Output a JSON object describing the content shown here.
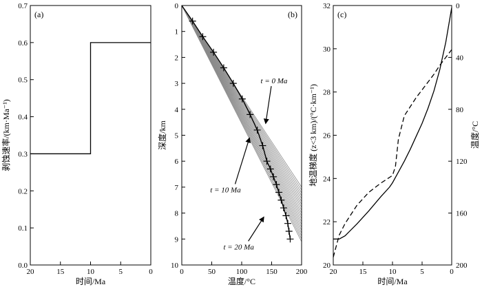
{
  "chart_data": [
    {
      "type": "line",
      "panel_label": "(a)",
      "xlabel": "时间/Ma",
      "ylabel": "剥蚀速率/(km·Ma⁻¹)",
      "xlim": [
        20,
        0
      ],
      "ylim": [
        0,
        0.7
      ],
      "x_ticks": [
        "20",
        "15",
        "10",
        "5",
        "0"
      ],
      "y_ticks": [
        "0.0",
        "0.1",
        "0.2",
        "0.3",
        "0.4",
        "0.5",
        "0.6",
        "0.7"
      ],
      "series": [
        {
          "style": "step",
          "x": [
            20,
            10,
            10,
            0
          ],
          "y": [
            0.3,
            0.3,
            0.6,
            0.6
          ]
        }
      ]
    },
    {
      "type": "line",
      "panel_label": "(b)",
      "xlabel": "温度/°C",
      "ylabel": "深度/km",
      "xlim": [
        0,
        200
      ],
      "ylim": [
        10,
        0
      ],
      "x_ticks": [
        "0",
        "50",
        "100",
        "150",
        "200"
      ],
      "y_ticks": [
        "0",
        "1",
        "2",
        "3",
        "4",
        "5",
        "6",
        "7",
        "8",
        "9",
        "10"
      ],
      "geotherm_fan": {
        "color": "#8a8a8a",
        "surface_temperature": 0,
        "end_depth_t0": 7.0,
        "end_depth_t20": 9.1,
        "count": 20
      },
      "series": [
        {
          "style": "line-with-crosses",
          "x": [
            0,
            18,
            35,
            53,
            70,
            86,
            101,
            114,
            126,
            135,
            142,
            148,
            153,
            158,
            162,
            166,
            170,
            174,
            177,
            179,
            181
          ],
          "y": [
            0,
            0.6,
            1.2,
            1.8,
            2.4,
            3.0,
            3.6,
            4.2,
            4.8,
            5.4,
            6.0,
            6.3,
            6.6,
            6.9,
            7.2,
            7.5,
            7.8,
            8.1,
            8.4,
            8.7,
            9.0
          ]
        }
      ],
      "annotations": [
        {
          "text": "t = 0 Ma",
          "x": 154,
          "y": 3.0,
          "arrow_to": [
            140,
            4.55
          ]
        },
        {
          "text": "t = 10 Ma",
          "x": 73,
          "y": 7.2,
          "arrow_to": [
            113,
            5.1
          ]
        },
        {
          "text": "t = 20 Ma",
          "x": 95,
          "y": 9.4,
          "arrow_to": [
            137,
            8.15
          ]
        }
      ]
    },
    {
      "type": "line",
      "panel_label": "(c)",
      "xlabel": "时间/Ma",
      "ylabel": "地温梯度 (z<3 km)/(°C·km⁻¹)",
      "ylabel_right": "温度/°C",
      "xlim": [
        20,
        0
      ],
      "ylim": [
        20,
        32
      ],
      "ylim_right": [
        200,
        0
      ],
      "x_ticks": [
        "20",
        "15",
        "10",
        "5",
        "0"
      ],
      "y_ticks": [
        "20",
        "22",
        "24",
        "26",
        "28",
        "30",
        "32"
      ],
      "y_ticks_right": [
        "0",
        "40",
        "80",
        "120",
        "160",
        "200"
      ],
      "series": [
        {
          "style": "solid",
          "axis": "left",
          "x": [
            20,
            19,
            18,
            16,
            14,
            12,
            10.5,
            10,
            9,
            8,
            7,
            6,
            5,
            4,
            3,
            2,
            1,
            0
          ],
          "y": [
            21.2,
            21.2,
            21.35,
            21.9,
            22.5,
            23.15,
            23.6,
            23.8,
            24.3,
            24.8,
            25.35,
            25.95,
            26.55,
            27.25,
            28.05,
            29.05,
            30.3,
            31.9
          ]
        },
        {
          "style": "dashed",
          "axis": "right",
          "x": [
            20,
            19,
            18,
            16,
            14,
            12,
            10,
            9.5,
            9,
            8,
            7,
            6,
            5,
            4,
            3,
            2,
            1,
            0
          ],
          "y": [
            194,
            177,
            168,
            154,
            144,
            137,
            131,
            124,
            103,
            85,
            78,
            71,
            65,
            59,
            53,
            46,
            40,
            34
          ]
        }
      ]
    }
  ]
}
